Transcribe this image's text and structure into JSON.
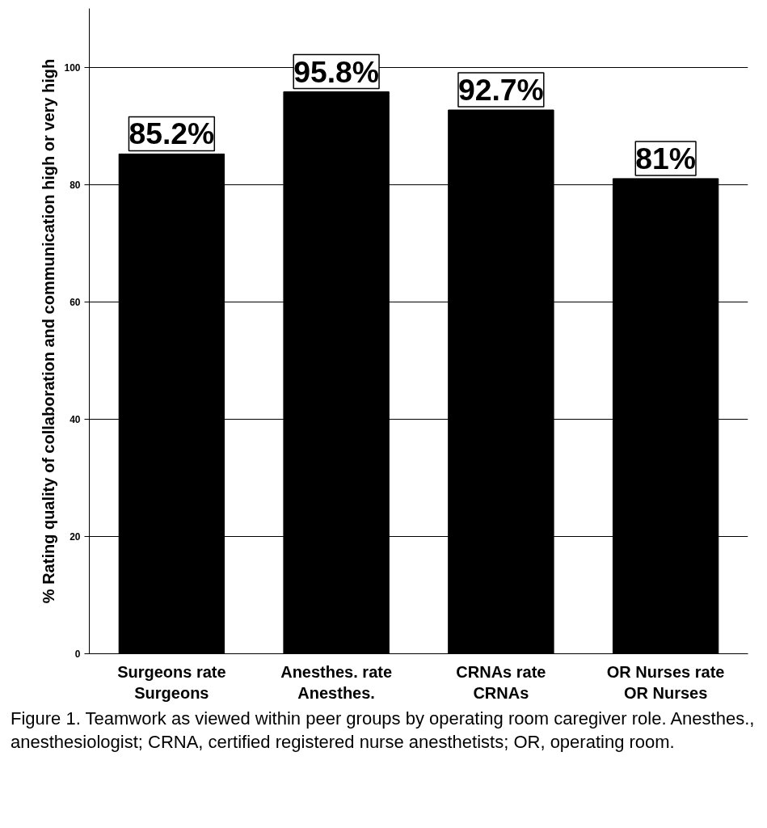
{
  "chart_data": {
    "type": "bar",
    "ylabel": "% Rating quality of collaboration and communication high or very high",
    "categories": [
      "Surgeons rate\nSurgeons",
      "Anesthes. rate\nAnesthes.",
      "CRNAs rate\nCRNAs",
      "OR Nurses rate\nOR Nurses"
    ],
    "values": [
      85.2,
      95.8,
      92.7,
      81
    ],
    "value_labels": [
      "85.2%",
      "95.8%",
      "92.7%",
      "81%"
    ],
    "color": "#000000",
    "ylim": [
      0,
      110
    ],
    "yticks": [
      0,
      20,
      40,
      60,
      80,
      100
    ],
    "grid": "y",
    "annotations": [
      "Figure 1. Teamwork as viewed within peer groups by operating room caregiver role. Anesthes., anesthesiologist; CRNA, certified registered nurse anesthetists; OR, operating room."
    ]
  }
}
